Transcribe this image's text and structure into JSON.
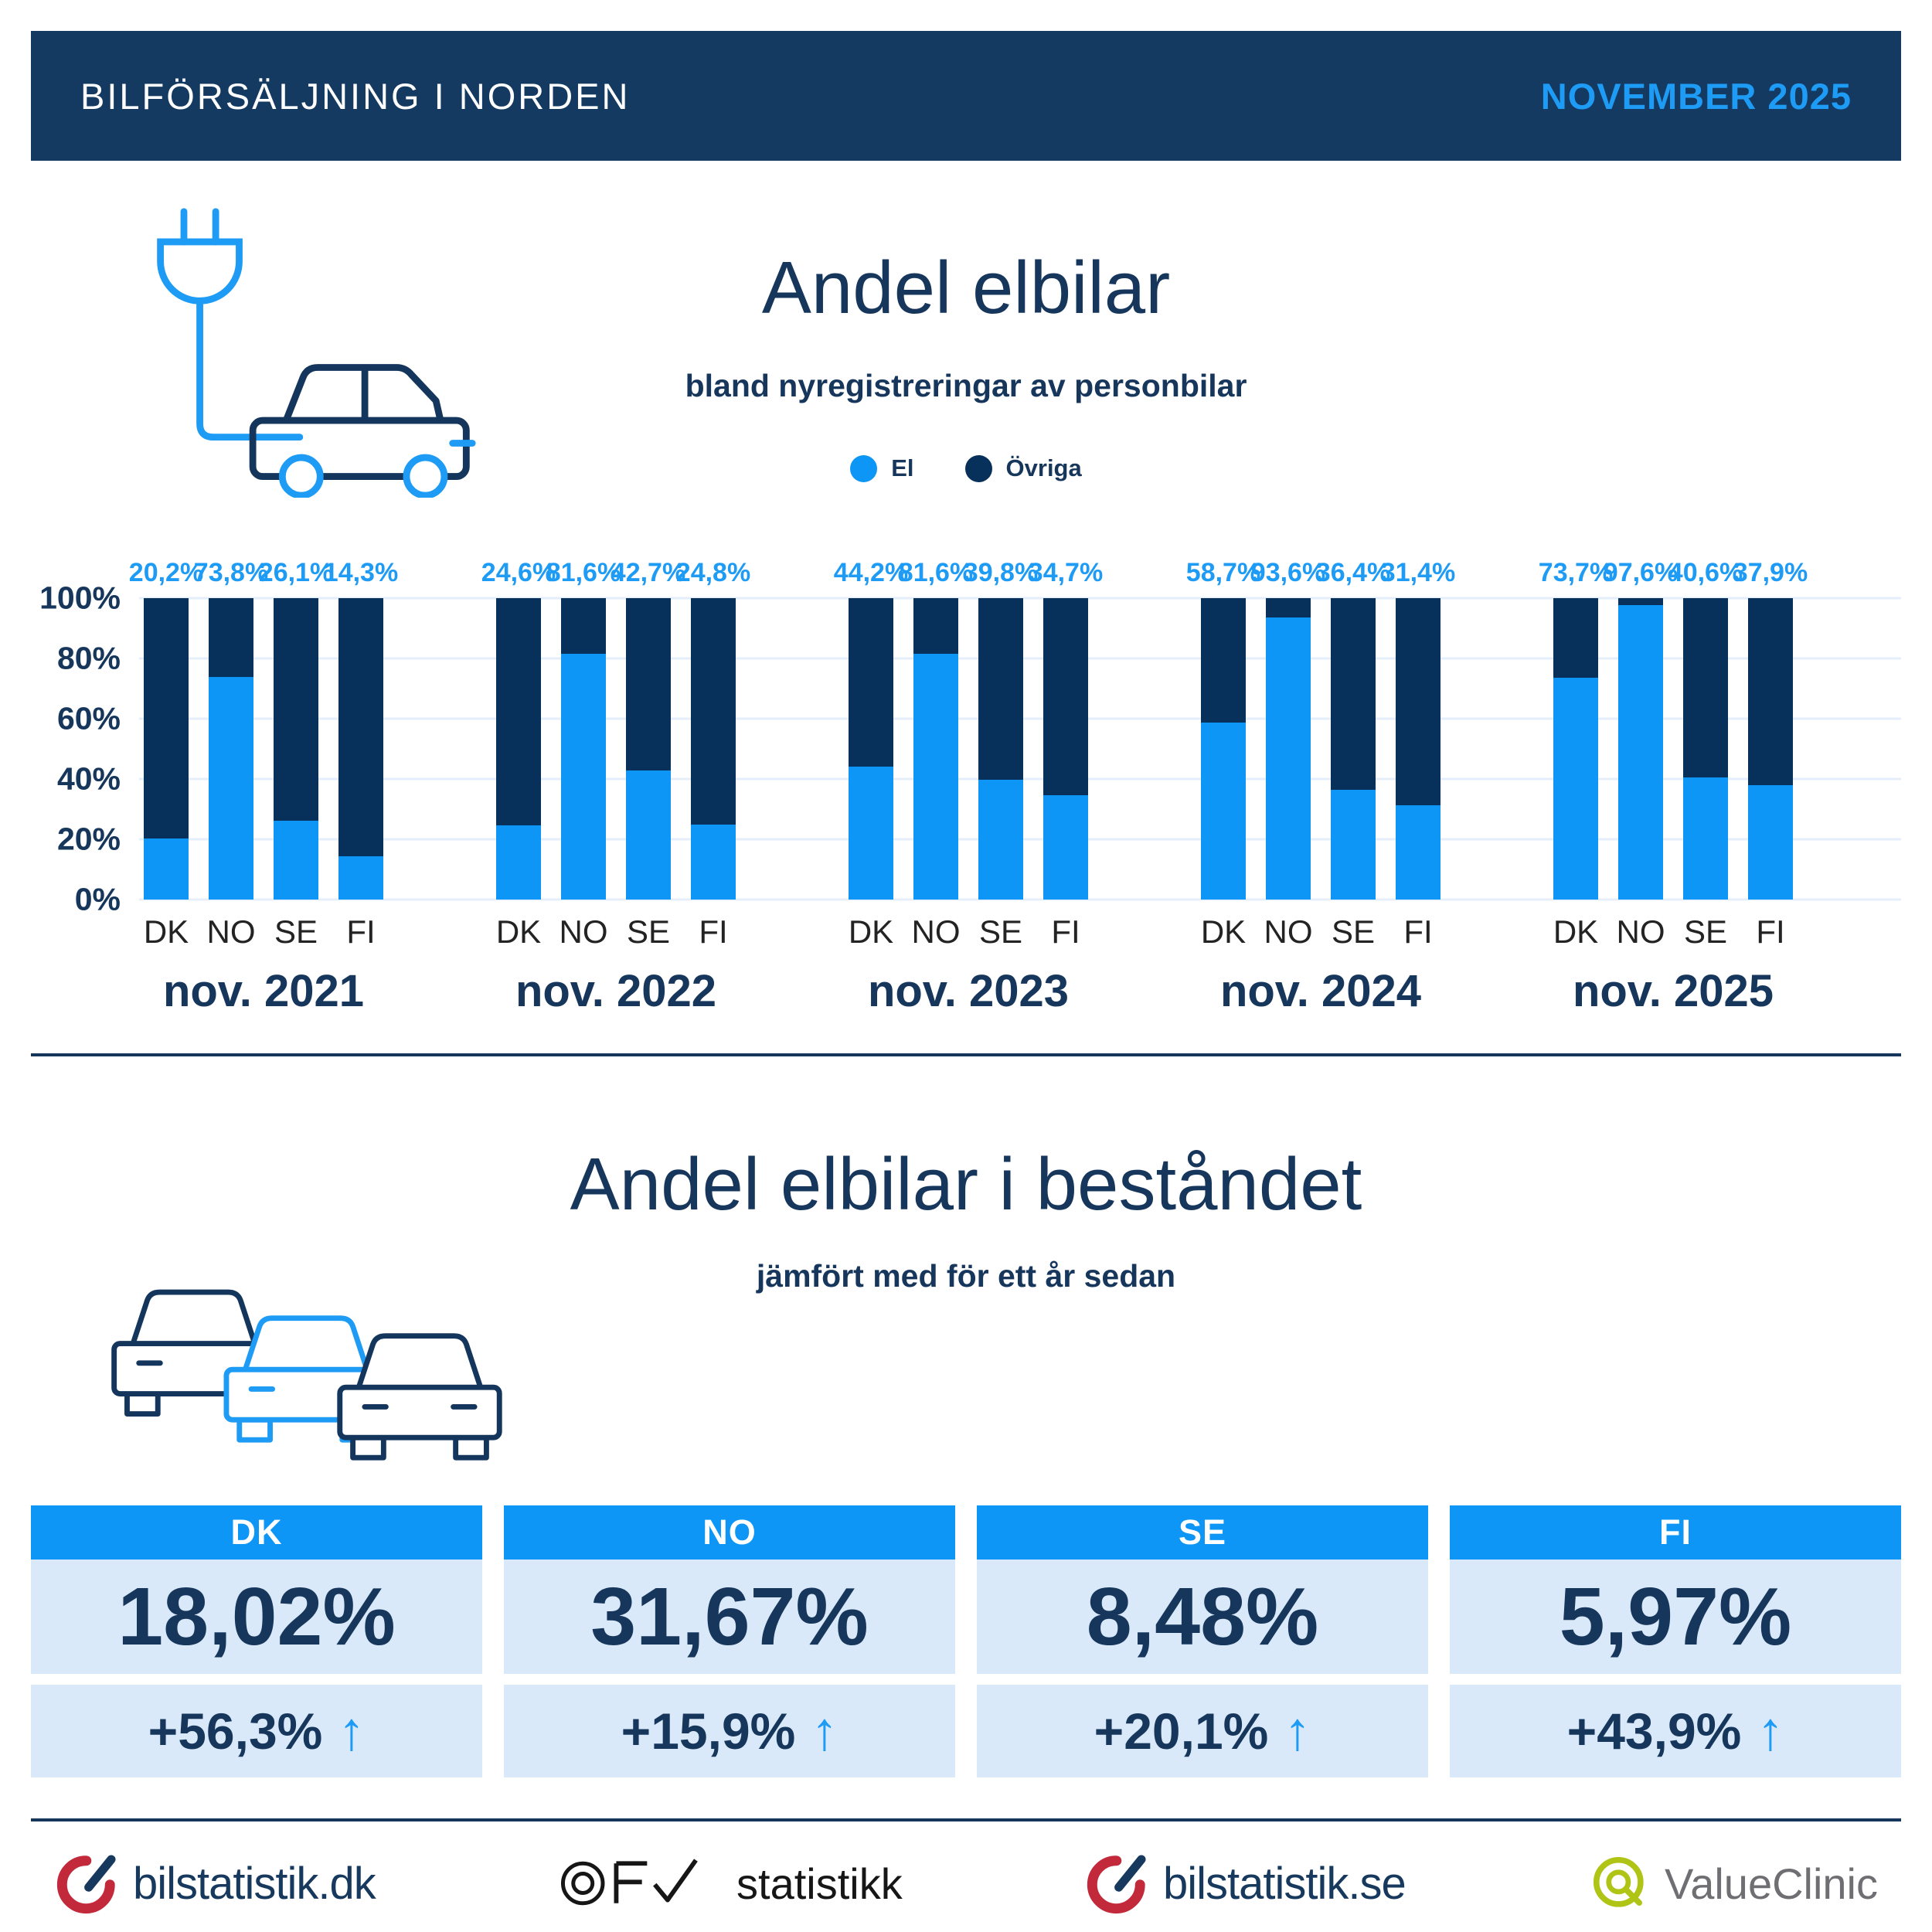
{
  "header": {
    "title": "BILFÖRSÄLJNING I NORDEN",
    "date": "NOVEMBER 2025"
  },
  "chart_data": {
    "type": "bar",
    "subtype": "stacked-100-percent",
    "title": "Andel elbilar",
    "subtitle": "bland nyregistreringar av personbilar",
    "unit": "%",
    "ylim": [
      0,
      100
    ],
    "y_ticks": [
      "100%",
      "80%",
      "60%",
      "40%",
      "20%",
      "0%"
    ],
    "grid": true,
    "legend_position": "top-center",
    "legend": [
      {
        "name": "El",
        "color": "#0D96F5"
      },
      {
        "name": "Övriga",
        "color": "#07315A"
      }
    ],
    "countries": [
      "DK",
      "NO",
      "SE",
      "FI"
    ],
    "groups": [
      {
        "period": "nov. 2021",
        "el_share": [
          20.2,
          73.8,
          26.1,
          14.3
        ],
        "labels": [
          "20,2%",
          "73,8%",
          "26,1%",
          "14,3%"
        ]
      },
      {
        "period": "nov. 2022",
        "el_share": [
          24.6,
          81.6,
          42.7,
          24.8
        ],
        "labels": [
          "24,6%",
          "81,6%",
          "42,7%",
          "24,8%"
        ]
      },
      {
        "period": "nov. 2023",
        "el_share": [
          44.2,
          81.6,
          39.8,
          34.7
        ],
        "labels": [
          "44,2%",
          "81,6%",
          "39,8%",
          "34,7%"
        ]
      },
      {
        "period": "nov. 2024",
        "el_share": [
          58.7,
          93.6,
          36.4,
          31.4
        ],
        "labels": [
          "58,7%",
          "93,6%",
          "36,4%",
          "31,4%"
        ]
      },
      {
        "period": "nov. 2025",
        "el_share": [
          73.7,
          97.6,
          40.6,
          37.9
        ],
        "labels": [
          "73,7%",
          "97,6%",
          "40,6%",
          "37,9%"
        ]
      }
    ]
  },
  "bottom_section": {
    "title": "Andel elbilar i beståndet",
    "subtitle": "jämfört med för ett år sedan",
    "cards": [
      {
        "country": "DK",
        "share": "18,02%",
        "change": "+56,3%",
        "direction": "up"
      },
      {
        "country": "NO",
        "share": "31,67%",
        "change": "+15,9%",
        "direction": "up"
      },
      {
        "country": "SE",
        "share": "8,48%",
        "change": "+20,1%",
        "direction": "up"
      },
      {
        "country": "FI",
        "share": "5,97%",
        "change": "+43,9%",
        "direction": "up"
      }
    ]
  },
  "icons": {
    "up_arrow": "↑"
  },
  "footer": {
    "logos": [
      {
        "name": "bilstatistik.dk",
        "text": "bilstatistik.dk"
      },
      {
        "name": "OFV statistikk",
        "text": "statistikk"
      },
      {
        "name": "bilstatistik.se",
        "text": "bilstatistik.se"
      },
      {
        "name": "ValueClinic",
        "text": "ValueClinic"
      }
    ]
  },
  "colors": {
    "blue": "#0D96F5",
    "blue_text": "#1E9BF5",
    "navy": "#16365C",
    "bar_navy": "#07315A",
    "header_bg": "#143A61",
    "card_bg": "#D9E9F9",
    "grid": "#E4EFFB",
    "country": "#232323",
    "logo_red": "#C2293B",
    "logo_lime": "#AFC414",
    "logo_gray": "#6F6F73",
    "logo_black": "#161616"
  }
}
